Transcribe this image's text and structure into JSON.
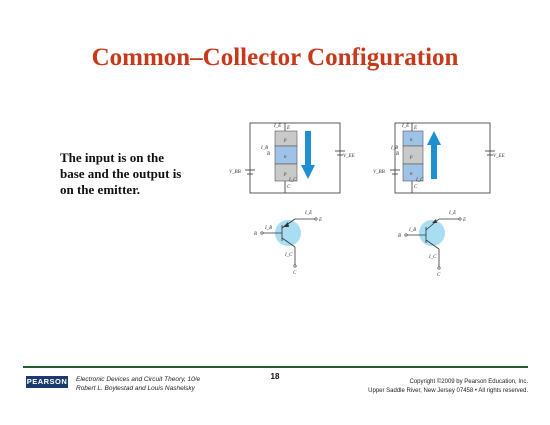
{
  "slide": {
    "title": "Common–Collector Configuration",
    "body_lines": [
      "The input is on the",
      "base and the output is",
      "on the emitter."
    ]
  },
  "diagram": {
    "pnp": {
      "layers": [
        "p",
        "n",
        "p"
      ],
      "terminals": [
        "E",
        "B",
        "C"
      ],
      "currents": [
        "I_E",
        "I_B",
        "I_C"
      ],
      "sources": [
        "V_BB",
        "V_EE"
      ],
      "arrow_color": "#1e8fd0",
      "arrow_direction": "down"
    },
    "npn": {
      "layers": [
        "n",
        "p",
        "n"
      ],
      "terminals": [
        "E",
        "B",
        "C"
      ],
      "currents": [
        "I_E",
        "I_B",
        "I_C"
      ],
      "sources": [
        "V_BB",
        "V_EE"
      ],
      "arrow_color": "#1e8fd0",
      "arrow_direction": "up"
    },
    "symbol_fill": "#a9ddf2"
  },
  "footer": {
    "logo": "PEARSON",
    "book_line1": "Electronic Devices and Circuit Theory, 10/e",
    "book_line2": "Robert L. Boylestad and Louis Nashelsky",
    "page": "18",
    "copyright_line1": "Copyright ©2009 by Pearson Education, Inc.",
    "copyright_line2": "Upper Saddle River, New Jersey 07458 • All rights reserved."
  },
  "colors": {
    "title": "#c8381a",
    "rule": "#1f5c2e",
    "logo_bg": "#1b3a6e"
  }
}
